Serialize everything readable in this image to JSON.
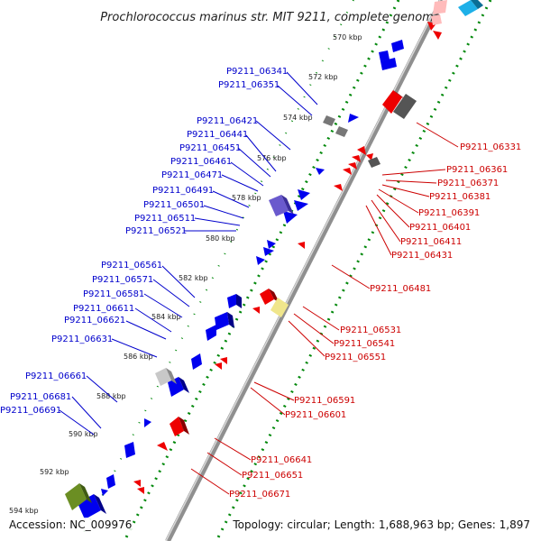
{
  "title": "Prochlorococcus marinus str. MIT 9211, complete genome",
  "accession": "Accession: NC_009976",
  "topology": "Topology: circular; Length: 1,688,963 bp; Genes: 1,897",
  "kbp_marks": [
    "570 kbp",
    "572 kbp",
    "574 kbp",
    "576 kbp",
    "578 kbp",
    "580 kbp",
    "582 kbp",
    "584 kbp",
    "586 kbp",
    "588 kbp",
    "590 kbp",
    "592 kbp",
    "594 kbp"
  ],
  "forward_labels": [
    "P9211_06341",
    "P9211_06351",
    "P9211_06421",
    "P9211_06441",
    "P9211_06451",
    "P9211_06461",
    "P9211_06471",
    "P9211_06491",
    "P9211_06501",
    "P9211_06511",
    "P9211_06521",
    "P9211_06561",
    "P9211_06571",
    "P9211_06581",
    "P9211_06611",
    "P9211_06621",
    "P9211_06631",
    "P9211_06661",
    "P9211_06681",
    "P9211_06691"
  ],
  "reverse_labels": [
    "P9211_06331",
    "P9211_06361",
    "P9211_06371",
    "P9211_06381",
    "P9211_06391",
    "P9211_06401",
    "P9211_06411",
    "P9211_06431",
    "P9211_06481",
    "P9211_06531",
    "P9211_06541",
    "P9211_06551",
    "P9211_06591",
    "P9211_06601",
    "P9211_06641",
    "P9211_06651",
    "P9211_06671"
  ],
  "colors": {
    "forward": "#0000ee",
    "reverse": "#ee0000",
    "backbone": "#888888",
    "ruler": "#008800"
  }
}
